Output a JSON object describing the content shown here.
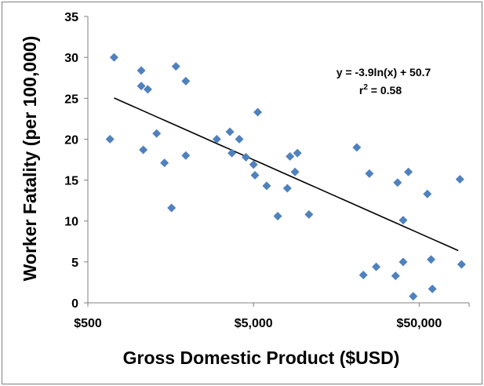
{
  "chart_data": {
    "type": "scatter",
    "title": "",
    "xlabel": "Gross Domestic Product ($USD)",
    "ylabel": "Worker Fatality (per 100,000)",
    "x_scale": "log10",
    "xlim": [
      500,
      100000
    ],
    "ylim": [
      0,
      35
    ],
    "x_tick_values": [
      500,
      5000,
      50000
    ],
    "x_tick_labels": [
      "$500",
      "$5,000",
      "$50,000"
    ],
    "y_ticks": [
      0,
      5,
      10,
      15,
      20,
      25,
      30,
      35
    ],
    "grid": false,
    "legend": "none",
    "marker_color": "#4f81bd",
    "trendline_color": "#000000",
    "trendline": {
      "type": "logarithmic",
      "a": -3.9,
      "b": 50.7,
      "x_range": [
        720,
        86000
      ],
      "equation_label": "y = -3.9ln(x) + 50.7",
      "r2_prefix": "r",
      "r2_sup": "2",
      "r2_value": " = 0.58"
    },
    "series": [
      {
        "points": [
          [
            680,
            20.0
          ],
          [
            720,
            30.0
          ],
          [
            1050,
            28.4
          ],
          [
            1050,
            26.5
          ],
          [
            1080,
            18.7
          ],
          [
            1150,
            26.1
          ],
          [
            1300,
            20.7
          ],
          [
            1450,
            17.1
          ],
          [
            1600,
            11.6
          ],
          [
            1700,
            28.9
          ],
          [
            1950,
            18.0
          ],
          [
            1950,
            27.1
          ],
          [
            3000,
            20.0
          ],
          [
            3600,
            20.9
          ],
          [
            3700,
            18.3
          ],
          [
            4100,
            20.0
          ],
          [
            4500,
            17.8
          ],
          [
            5000,
            16.9
          ],
          [
            5100,
            15.6
          ],
          [
            5300,
            23.3
          ],
          [
            6000,
            14.3
          ],
          [
            7000,
            10.6
          ],
          [
            8000,
            14.0
          ],
          [
            8300,
            17.9
          ],
          [
            8900,
            16.0
          ],
          [
            9200,
            18.3
          ],
          [
            10800,
            10.8
          ],
          [
            21000,
            19.0
          ],
          [
            23000,
            3.4
          ],
          [
            25000,
            15.8
          ],
          [
            27500,
            4.4
          ],
          [
            36000,
            3.3
          ],
          [
            37000,
            14.7
          ],
          [
            40000,
            5.0
          ],
          [
            40000,
            10.1
          ],
          [
            43000,
            16.0
          ],
          [
            46000,
            0.8
          ],
          [
            56000,
            13.3
          ],
          [
            59000,
            5.3
          ],
          [
            60000,
            1.7
          ],
          [
            88000,
            15.1
          ],
          [
            90000,
            4.7
          ]
        ]
      }
    ]
  }
}
